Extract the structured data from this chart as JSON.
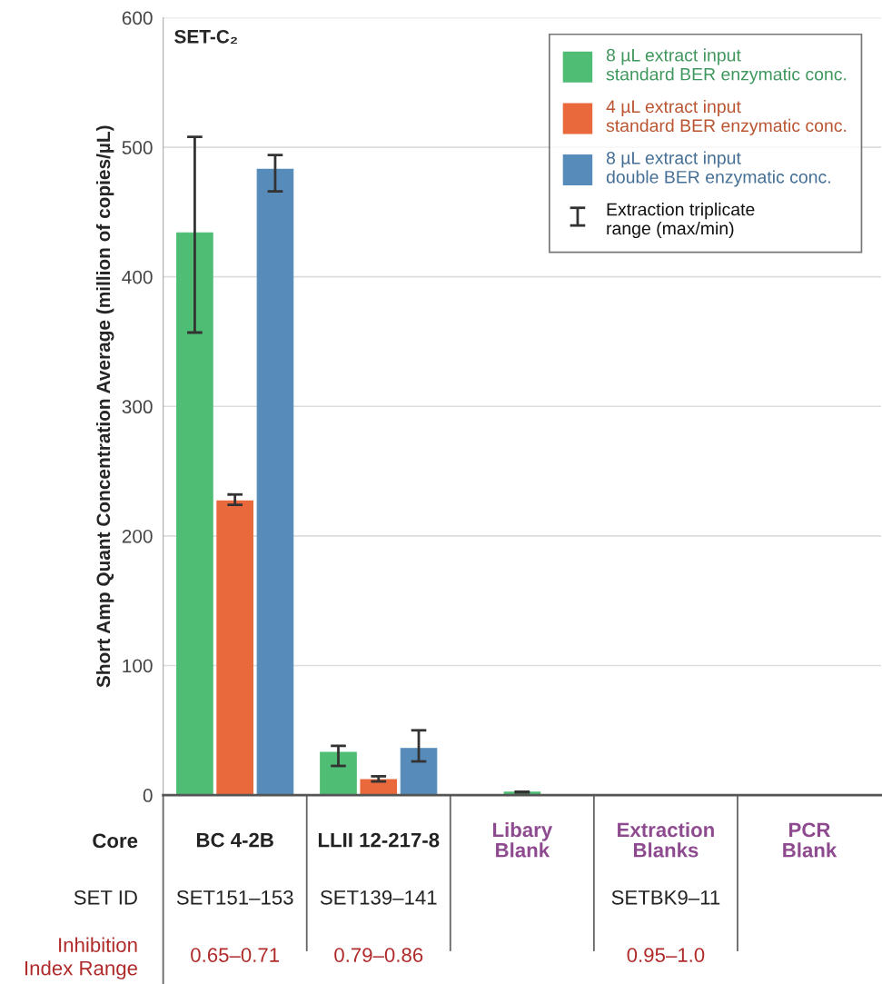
{
  "chart_data": {
    "type": "bar",
    "title": "SET-C₂",
    "ylabel": "Short Amp Quant Concentration Average (million of copies/µL)",
    "categories": [
      "BC 4-2B",
      "LLII 12-217-8",
      "Libary Blank",
      "Extraction Blanks",
      "PCR Blank"
    ],
    "series": [
      {
        "name": "8 µL extract input standard BER enzymatic conc.",
        "color": "#4fbd74",
        "values": [
          434,
          33,
          2.2,
          null,
          null
        ],
        "errors": [
          [
            357,
            508
          ],
          [
            22.5,
            38
          ],
          [
            2,
            2.6
          ],
          null,
          null
        ]
      },
      {
        "name": "4 µL extract input standard BER enzymatic conc.",
        "color": "#e9693d",
        "values": [
          227,
          12,
          null,
          null,
          null
        ],
        "errors": [
          [
            224,
            232
          ],
          [
            10.5,
            14.5
          ],
          null,
          null,
          null
        ]
      },
      {
        "name": "8 µL extract input double BER enzymatic conc.",
        "color": "#568bba",
        "values": [
          483,
          36,
          null,
          null,
          null
        ],
        "errors": [
          [
            466,
            494
          ],
          [
            26,
            50
          ],
          null,
          null,
          null
        ]
      }
    ],
    "ylim": [
      0,
      600
    ],
    "yticks": [
      0,
      100,
      200,
      300,
      400,
      500,
      600
    ],
    "grid": "y",
    "legend": "top right",
    "annotations": [
      "Extraction triplicate range (max/min)",
      "Core",
      "SET ID",
      "SET151–153",
      "SET139–141",
      "SETBK9–11",
      "Inhibition Index Range",
      "0.65–0.71",
      "0.79–0.86",
      "0.95–1.0"
    ]
  }
}
